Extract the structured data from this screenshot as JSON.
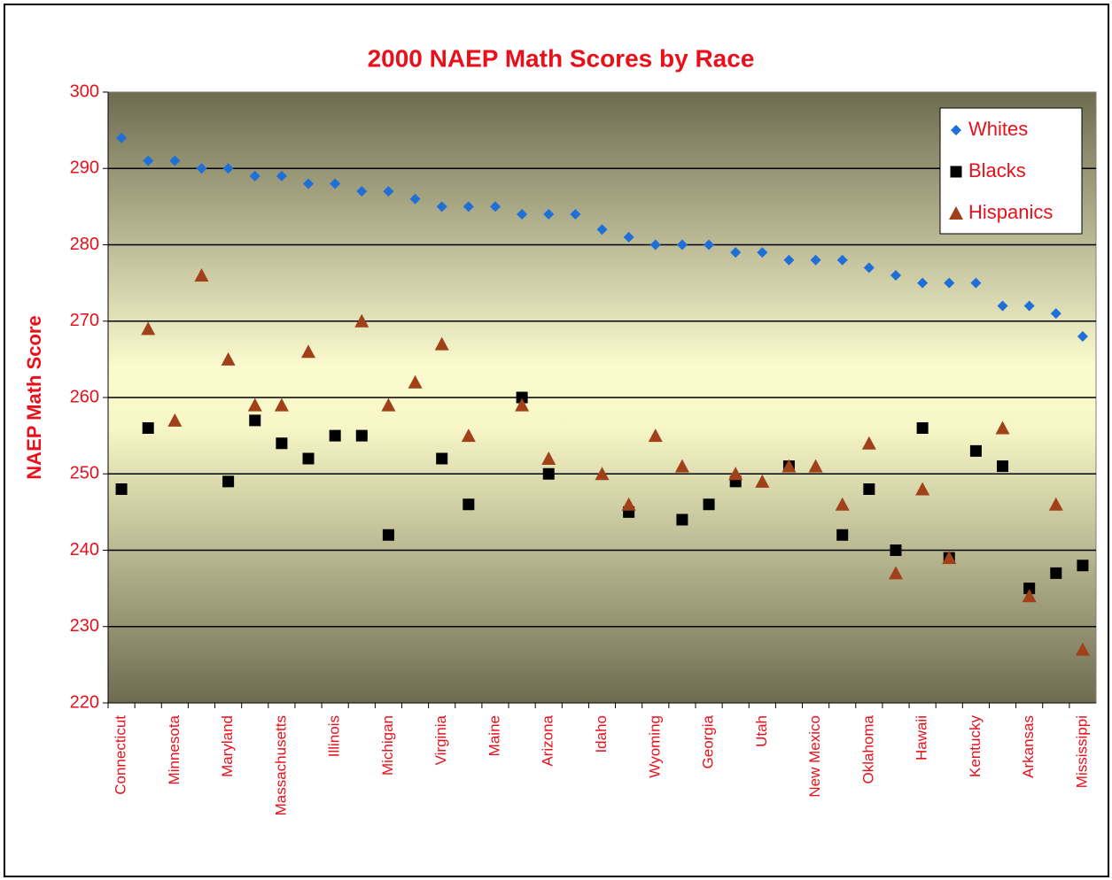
{
  "chart_data": {
    "type": "scatter",
    "title": "2000 NAEP Math Scores by Race",
    "y_label": "NAEP Math Score",
    "categories": [
      "Connecticut",
      null,
      "Minnesota",
      null,
      "Maryland",
      null,
      "Massachusetts",
      null,
      "Illinois",
      null,
      "Michigan",
      null,
      "Virginia",
      null,
      "Maine",
      null,
      "Arizona",
      null,
      "Idaho",
      null,
      "Wyoming",
      null,
      "Georgia",
      null,
      "Utah",
      null,
      "New Mexico",
      null,
      "Oklahoma",
      null,
      "Hawaii",
      null,
      "Kentucky",
      null,
      "Arkansas",
      null,
      "Mississippi"
    ],
    "series": [
      {
        "name": "Whites",
        "color": "#1f6fd8",
        "marker": "diamond",
        "values": [
          294,
          291,
          291,
          290,
          290,
          289,
          289,
          288,
          288,
          287,
          287,
          286,
          285,
          285,
          285,
          284,
          284,
          284,
          282,
          281,
          280,
          280,
          280,
          279,
          279,
          278,
          278,
          278,
          277,
          276,
          275,
          275,
          275,
          272,
          272,
          271,
          268
        ]
      },
      {
        "name": "Blacks",
        "color": "#000000",
        "marker": "square",
        "values": [
          248,
          256,
          null,
          null,
          249,
          257,
          254,
          252,
          255,
          255,
          242,
          null,
          252,
          246,
          null,
          260,
          250,
          null,
          null,
          245,
          null,
          244,
          246,
          249,
          null,
          251,
          null,
          242,
          248,
          240,
          256,
          239,
          253,
          251,
          235,
          237,
          238
        ]
      },
      {
        "name": "Hispanics",
        "color": "#a0411a",
        "marker": "triangle",
        "values": [
          null,
          269,
          257,
          276,
          265,
          259,
          259,
          266,
          null,
          270,
          259,
          262,
          267,
          255,
          null,
          259,
          252,
          null,
          250,
          246,
          255,
          251,
          null,
          250,
          249,
          251,
          251,
          246,
          254,
          237,
          248,
          239,
          null,
          256,
          234,
          246,
          227
        ]
      }
    ],
    "ylim": [
      220,
      300
    ],
    "yticks": [
      220,
      230,
      240,
      250,
      260,
      270,
      280,
      290,
      300
    ],
    "grid": true,
    "legend": "top-right"
  }
}
